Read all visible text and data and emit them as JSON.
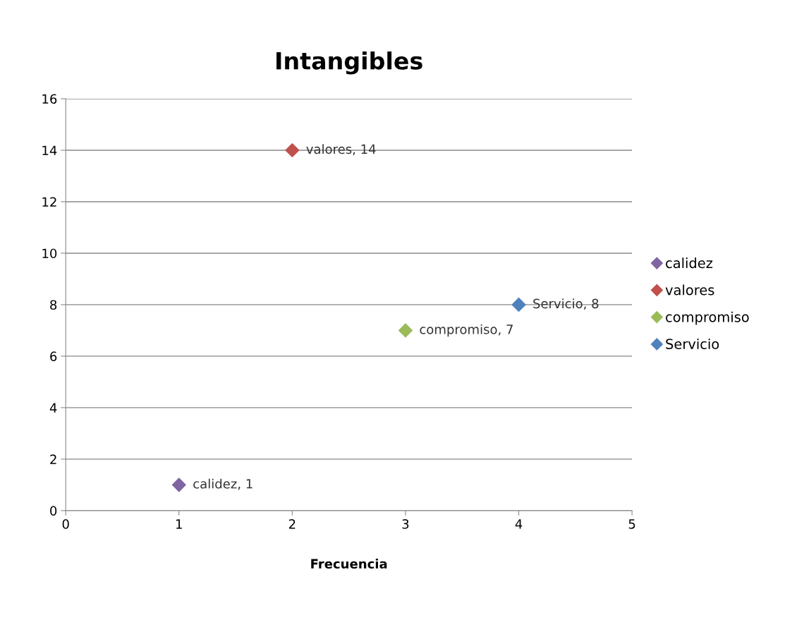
{
  "chart_data": {
    "type": "scatter",
    "title": "Intangibles",
    "xlabel": "Frecuencia",
    "series": [
      {
        "name": "calidez",
        "color": "#8064a2",
        "x": [
          1
        ],
        "values": [
          1
        ],
        "value_labels": [
          "calidez, 1"
        ]
      },
      {
        "name": "valores",
        "color": "#c0504d",
        "x": [
          2
        ],
        "values": [
          14
        ],
        "value_labels": [
          "valores, 14"
        ]
      },
      {
        "name": "compromiso",
        "color": "#9bbb59",
        "x": [
          3
        ],
        "values": [
          7
        ],
        "value_labels": [
          "compromiso, 7"
        ]
      },
      {
        "name": "Servicio",
        "color": "#4f81bd",
        "x": [
          4
        ],
        "values": [
          8
        ],
        "value_labels": [
          "Servicio, 8"
        ]
      }
    ],
    "xlim": [
      0,
      5
    ],
    "xticks": [
      0,
      1,
      2,
      3,
      4,
      5
    ],
    "ylim": [
      0,
      16
    ],
    "yticks": [
      0,
      2,
      4,
      6,
      8,
      10,
      12,
      14,
      16
    ],
    "grid": "y",
    "legend": "right",
    "marker": "diamond"
  }
}
